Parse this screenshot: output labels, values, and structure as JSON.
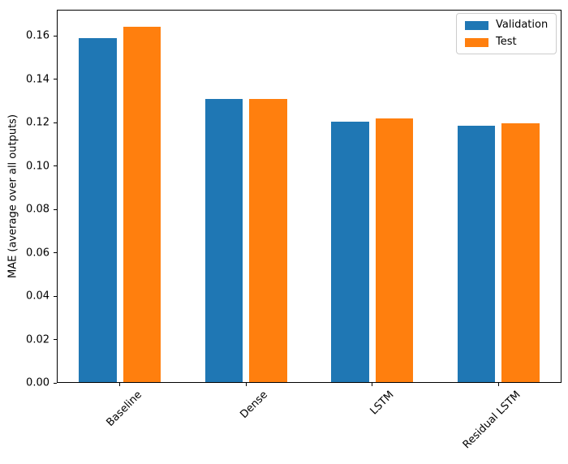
{
  "chart_data": {
    "type": "bar",
    "title": "",
    "categories": [
      "Baseline",
      "Dense",
      "LSTM",
      "Residual LSTM"
    ],
    "series": [
      {
        "name": "Validation",
        "color": "#1f77b4",
        "values": [
          0.159,
          0.131,
          0.1205,
          0.1185
        ]
      },
      {
        "name": "Test",
        "color": "#ff7f0e",
        "values": [
          0.164,
          0.131,
          0.122,
          0.1195
        ]
      }
    ],
    "xlabel": "",
    "ylabel": "MAE (average over all outputs)",
    "ylim": [
      0,
      0.172
    ],
    "ytick_values": [
      0.0,
      0.02,
      0.04,
      0.06,
      0.08,
      0.1,
      0.12,
      0.14,
      0.16
    ],
    "ytick_label_format": "2-decimals",
    "xtick_rotation_deg": 45,
    "grid": false,
    "legend": {
      "position": "upper right",
      "entries": [
        "Validation",
        "Test"
      ]
    },
    "bar_layout": {
      "width_fraction": 0.3,
      "center_offset_fraction": 0.175
    }
  },
  "colors": {
    "axis": "#000000",
    "text": "#000000",
    "background": "#ffffff",
    "legend_border": "#cccccc",
    "validation_blue": "#1f77b4",
    "test_orange": "#ff7f0e"
  }
}
